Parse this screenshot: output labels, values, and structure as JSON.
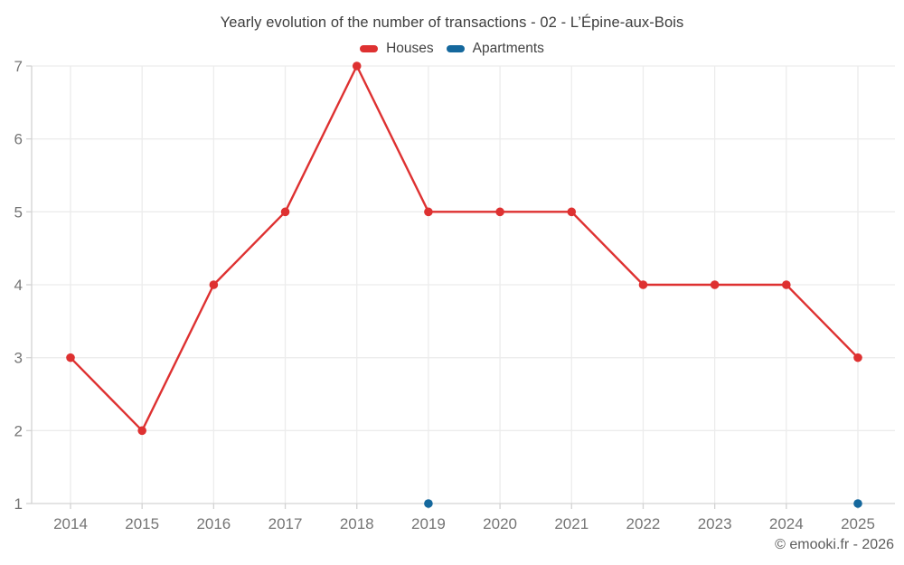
{
  "page": {
    "watermark": "© emooki.fr - 2026"
  },
  "chart_data": {
    "type": "line",
    "title": "Yearly evolution of the number of transactions - 02 - L’Épine-aux-Bois",
    "xlabel": "",
    "ylabel": "",
    "categories": [
      "2014",
      "2015",
      "2016",
      "2017",
      "2018",
      "2019",
      "2020",
      "2021",
      "2022",
      "2023",
      "2024",
      "2025"
    ],
    "series": [
      {
        "name": "Houses",
        "color": "#de3131",
        "values": [
          3,
          2,
          4,
          5,
          7,
          5,
          5,
          5,
          4,
          4,
          4,
          3
        ],
        "draw_line": true
      },
      {
        "name": "Apartments",
        "color": "#15689d",
        "values": [
          null,
          null,
          null,
          null,
          null,
          1,
          null,
          null,
          null,
          null,
          null,
          1
        ],
        "draw_line": false
      }
    ],
    "ylim": [
      1,
      7
    ],
    "yticks": [
      1,
      2,
      3,
      4,
      5,
      6,
      7
    ],
    "grid": true,
    "legend_position": "top"
  },
  "colors": {
    "houses": "#de3131",
    "apartments": "#15689d",
    "grid": "#ececec",
    "axis": "#d3d3d3",
    "tick_label": "#757575",
    "title_text": "#3d3d3d"
  }
}
